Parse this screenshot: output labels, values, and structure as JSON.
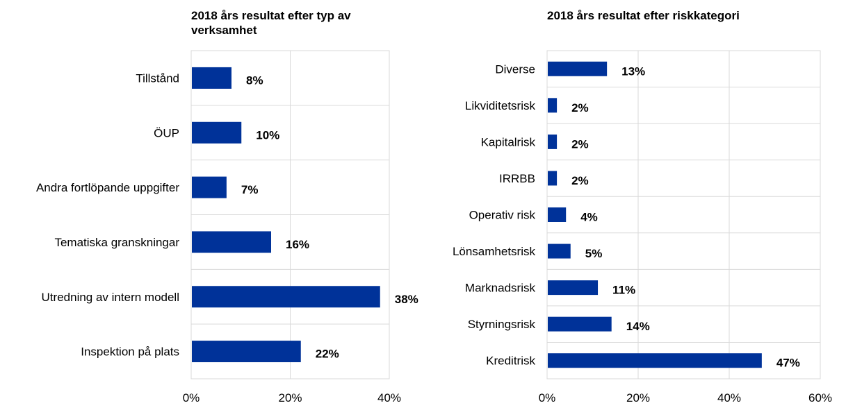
{
  "chart_data": [
    {
      "type": "bar",
      "orientation": "horizontal",
      "title": "2018 års resultat efter typ av verksamhet",
      "categories": [
        "Tillstånd",
        "ÖUP",
        "Andra fortlöpande uppgifter",
        "Tematiska granskningar",
        "Utredning av intern modell",
        "Inspektion på plats"
      ],
      "values": [
        8,
        10,
        7,
        16,
        38,
        22
      ],
      "value_labels": [
        "8%",
        "10%",
        "7%",
        "16%",
        "38%",
        "22%"
      ],
      "xlim": [
        0,
        40
      ],
      "x_ticks": [
        0,
        20,
        40
      ],
      "x_tick_labels": [
        "0%",
        "20%",
        "40%"
      ],
      "grid": true,
      "bar_color": "#003299"
    },
    {
      "type": "bar",
      "orientation": "horizontal",
      "title": "2018 års resultat efter riskkategori",
      "categories": [
        "Diverse",
        "Likviditetsrisk",
        "Kapitalrisk",
        "IRRBB",
        "Operativ risk",
        "Lönsamhetsrisk",
        "Marknadsrisk",
        "Styrningsrisk",
        "Kreditrisk"
      ],
      "values": [
        13,
        2,
        2,
        2,
        4,
        5,
        11,
        14,
        47
      ],
      "value_labels": [
        "13%",
        "2%",
        "2%",
        "2%",
        "4%",
        "5%",
        "11%",
        "14%",
        "47%"
      ],
      "xlim": [
        0,
        60
      ],
      "x_ticks": [
        0,
        20,
        40,
        60
      ],
      "x_tick_labels": [
        "0%",
        "20%",
        "40%",
        "60%"
      ],
      "grid": true,
      "bar_color": "#003299"
    }
  ]
}
